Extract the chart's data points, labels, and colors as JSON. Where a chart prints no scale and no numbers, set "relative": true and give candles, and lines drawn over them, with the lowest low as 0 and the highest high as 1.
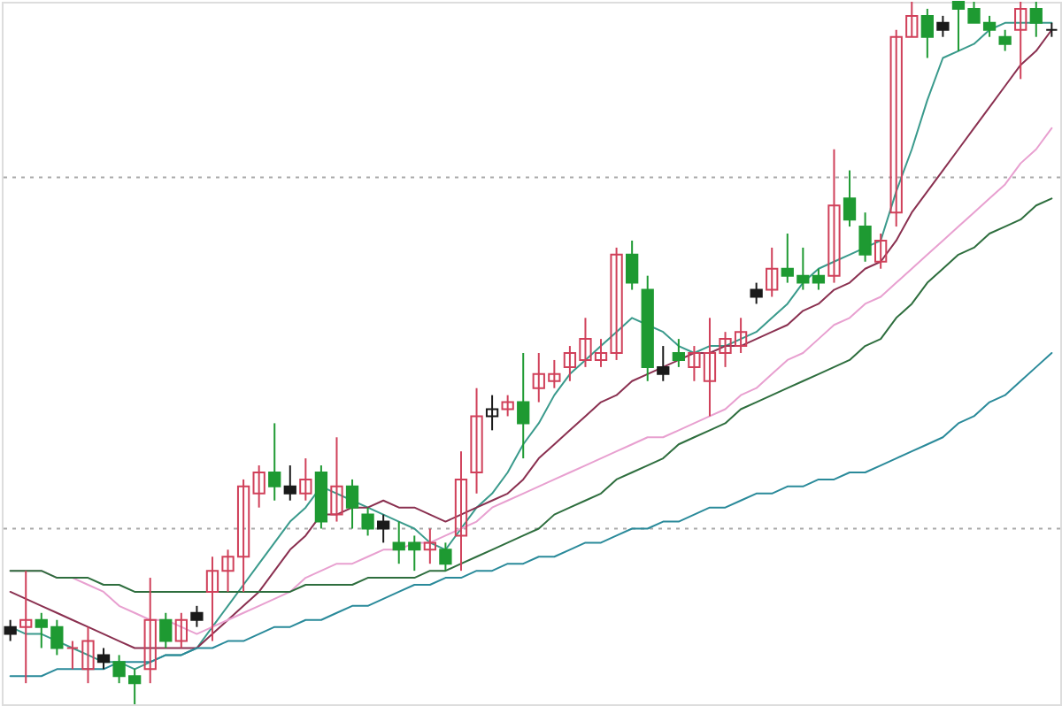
{
  "chart_data": {
    "type": "candlestick",
    "relative": true,
    "categories": [
      null,
      null,
      null,
      null,
      null,
      null,
      null,
      null,
      null,
      null,
      null,
      null,
      null,
      null,
      null,
      null,
      null,
      null,
      null,
      null,
      null,
      null,
      null,
      null,
      null,
      null,
      null,
      null,
      null,
      null,
      null,
      null,
      null,
      null,
      null,
      null,
      null,
      null,
      null,
      null,
      null,
      null,
      null,
      null,
      null,
      null,
      null,
      null,
      null,
      null,
      null,
      null,
      null,
      null,
      null,
      null,
      null,
      null,
      null,
      null,
      null,
      null,
      null,
      null,
      null,
      null,
      null,
      null
    ],
    "ohlc": [
      [
        0.11,
        0.12,
        0.09,
        0.1
      ],
      [
        0.11,
        0.19,
        0.03,
        0.12
      ],
      [
        0.12,
        0.13,
        0.08,
        0.11
      ],
      [
        0.11,
        0.12,
        0.07,
        0.08
      ],
      [
        0.08,
        0.09,
        0.05,
        0.08
      ],
      [
        0.05,
        0.11,
        0.03,
        0.09
      ],
      [
        0.07,
        0.08,
        0.05,
        0.06
      ],
      [
        0.06,
        0.07,
        0.03,
        0.04
      ],
      [
        0.04,
        0.05,
        0,
        0.03
      ],
      [
        0.05,
        0.18,
        0.03,
        0.12
      ],
      [
        0.12,
        0.13,
        0.08,
        0.09
      ],
      [
        0.09,
        0.13,
        0.08,
        0.12
      ],
      [
        0.13,
        0.14,
        0.11,
        0.12
      ],
      [
        0.16,
        0.21,
        0.09,
        0.19
      ],
      [
        0.19,
        0.22,
        0.16,
        0.21
      ],
      [
        0.21,
        0.32,
        0.16,
        0.31
      ],
      [
        0.3,
        0.34,
        0.28,
        0.33
      ],
      [
        0.33,
        0.4,
        0.29,
        0.31
      ],
      [
        0.31,
        0.34,
        0.29,
        0.3
      ],
      [
        0.3,
        0.35,
        0.29,
        0.32
      ],
      [
        0.33,
        0.34,
        0.25,
        0.26
      ],
      [
        0.27,
        0.38,
        0.26,
        0.31
      ],
      [
        0.31,
        0.32,
        0.25,
        0.28
      ],
      [
        0.27,
        0.28,
        0.24,
        0.25
      ],
      [
        0.26,
        0.27,
        0.23,
        0.25
      ],
      [
        0.23,
        0.26,
        0.2,
        0.22
      ],
      [
        0.23,
        0.24,
        0.19,
        0.22
      ],
      [
        0.22,
        0.25,
        0.2,
        0.23
      ],
      [
        0.22,
        0.23,
        0.19,
        0.2
      ],
      [
        0.24,
        0.36,
        0.19,
        0.32
      ],
      [
        0.33,
        0.45,
        0.3,
        0.41
      ],
      [
        0.41,
        0.44,
        0.39,
        0.42
      ],
      [
        0.42,
        0.44,
        0.41,
        0.43
      ],
      [
        0.43,
        0.5,
        0.35,
        0.4
      ],
      [
        0.45,
        0.5,
        0.43,
        0.47
      ],
      [
        0.46,
        0.49,
        0.45,
        0.47
      ],
      [
        0.48,
        0.51,
        0.46,
        0.5
      ],
      [
        0.49,
        0.55,
        0.48,
        0.52
      ],
      [
        0.49,
        0.52,
        0.48,
        0.5
      ],
      [
        0.5,
        0.65,
        0.49,
        0.64
      ],
      [
        0.64,
        0.66,
        0.59,
        0.6
      ],
      [
        0.59,
        0.61,
        0.46,
        0.48
      ],
      [
        0.48,
        0.51,
        0.46,
        0.47
      ],
      [
        0.5,
        0.52,
        0.48,
        0.49
      ],
      [
        0.48,
        0.51,
        0.46,
        0.5
      ],
      [
        0.46,
        0.55,
        0.41,
        0.5
      ],
      [
        0.5,
        0.53,
        0.48,
        0.52
      ],
      [
        0.51,
        0.55,
        0.5,
        0.53
      ],
      [
        0.59,
        0.6,
        0.57,
        0.58
      ],
      [
        0.59,
        0.65,
        0.58,
        0.62
      ],
      [
        0.62,
        0.67,
        0.6,
        0.61
      ],
      [
        0.61,
        0.65,
        0.59,
        0.6
      ],
      [
        0.61,
        0.62,
        0.59,
        0.6
      ],
      [
        0.61,
        0.79,
        0.6,
        0.71
      ],
      [
        0.72,
        0.76,
        0.68,
        0.69
      ],
      [
        0.68,
        0.7,
        0.63,
        0.64
      ],
      [
        0.63,
        0.67,
        0.62,
        0.66
      ],
      [
        0.7,
        0.96,
        0.68,
        0.95
      ],
      [
        0.95,
        1,
        0.95,
        0.98
      ],
      [
        0.98,
        0.99,
        0.92,
        0.95
      ],
      [
        0.97,
        0.98,
        0.95,
        0.96
      ],
      [
        1,
        1,
        0.93,
        0.99
      ],
      [
        0.99,
        1,
        0.97,
        0.97
      ],
      [
        0.97,
        0.98,
        0.95,
        0.96
      ],
      [
        0.95,
        0.96,
        0.93,
        0.94
      ],
      [
        0.96,
        1,
        0.89,
        0.99
      ],
      [
        0.99,
        1,
        0.95,
        0.97
      ],
      [
        0.96,
        0.97,
        0.95,
        0.96
      ]
    ],
    "colors": [
      "#1a1a1a",
      "#d0405a",
      "#1e9a32",
      "#1e9a32",
      "#d0405a",
      "#d0405a",
      "#1a1a1a",
      "#1e9a32",
      "#1e9a32",
      "#d0405a",
      "#1e9a32",
      "#d0405a",
      "#1a1a1a",
      "#d0405a",
      "#d0405a",
      "#d0405a",
      "#d0405a",
      "#1e9a32",
      "#1a1a1a",
      "#d0405a",
      "#1e9a32",
      "#d0405a",
      "#1e9a32",
      "#1e9a32",
      "#1a1a1a",
      "#1e9a32",
      "#1e9a32",
      "#d0405a",
      "#1e9a32",
      "#d0405a",
      "#d0405a",
      "#1a1a1a",
      "#d0405a",
      "#1e9a32",
      "#d0405a",
      "#d0405a",
      "#d0405a",
      "#d0405a",
      "#d0405a",
      "#d0405a",
      "#1e9a32",
      "#1e9a32",
      "#1a1a1a",
      "#1e9a32",
      "#d0405a",
      "#d0405a",
      "#d0405a",
      "#d0405a",
      "#1a1a1a",
      "#d0405a",
      "#1e9a32",
      "#1e9a32",
      "#1e9a32",
      "#d0405a",
      "#1e9a32",
      "#1e9a32",
      "#d0405a",
      "#d0405a",
      "#d0405a",
      "#1e9a32",
      "#1a1a1a",
      "#1e9a32",
      "#1e9a32",
      "#1e9a32",
      "#1e9a32",
      "#d0405a",
      "#1e9a32",
      "#1a1a1a"
    ],
    "series": [
      {
        "type": "line",
        "color": "#3a9a8c",
        "values": [
          0.11,
          0.1,
          0.1,
          0.09,
          0.08,
          0.07,
          0.06,
          0.06,
          0.05,
          0.06,
          0.07,
          0.07,
          0.08,
          0.11,
          0.14,
          0.17,
          0.2,
          0.23,
          0.26,
          0.28,
          0.31,
          0.3,
          0.29,
          0.28,
          0.27,
          0.26,
          0.25,
          0.23,
          0.22,
          0.25,
          0.28,
          0.3,
          0.33,
          0.37,
          0.4,
          0.44,
          0.47,
          0.49,
          0.51,
          0.53,
          0.55,
          0.54,
          0.53,
          0.51,
          0.5,
          0.51,
          0.51,
          0.52,
          0.53,
          0.55,
          0.57,
          0.6,
          0.62,
          0.63,
          0.64,
          0.65,
          0.66,
          0.73,
          0.79,
          0.86,
          0.92,
          0.93,
          0.94,
          0.96,
          0.97,
          0.97,
          0.97,
          0.97
        ]
      },
      {
        "type": "line",
        "color": "#8a3050",
        "values": [
          0.16,
          0.15,
          0.14,
          0.13,
          0.12,
          0.11,
          0.1,
          0.09,
          0.08,
          0.08,
          0.08,
          0.08,
          0.08,
          0.1,
          0.12,
          0.14,
          0.16,
          0.19,
          0.22,
          0.24,
          0.27,
          0.27,
          0.28,
          0.28,
          0.29,
          0.28,
          0.28,
          0.27,
          0.26,
          0.27,
          0.28,
          0.29,
          0.3,
          0.32,
          0.35,
          0.37,
          0.39,
          0.41,
          0.43,
          0.44,
          0.46,
          0.47,
          0.48,
          0.49,
          0.5,
          0.5,
          0.51,
          0.51,
          0.52,
          0.53,
          0.54,
          0.56,
          0.57,
          0.59,
          0.6,
          0.62,
          0.63,
          0.66,
          0.7,
          0.73,
          0.76,
          0.79,
          0.82,
          0.85,
          0.88,
          0.91,
          0.93,
          0.96
        ]
      },
      {
        "type": "line",
        "color": "#e8a0d0",
        "values": [
          0.19,
          0.19,
          0.19,
          0.18,
          0.18,
          0.17,
          0.16,
          0.14,
          0.13,
          0.12,
          0.12,
          0.11,
          0.1,
          0.11,
          0.12,
          0.13,
          0.14,
          0.15,
          0.16,
          0.18,
          0.19,
          0.2,
          0.2,
          0.21,
          0.22,
          0.22,
          0.23,
          0.23,
          0.24,
          0.25,
          0.26,
          0.28,
          0.29,
          0.3,
          0.31,
          0.32,
          0.33,
          0.34,
          0.35,
          0.36,
          0.37,
          0.38,
          0.38,
          0.39,
          0.4,
          0.41,
          0.42,
          0.44,
          0.45,
          0.47,
          0.49,
          0.5,
          0.52,
          0.54,
          0.55,
          0.57,
          0.58,
          0.6,
          0.62,
          0.64,
          0.66,
          0.68,
          0.7,
          0.72,
          0.74,
          0.77,
          0.79,
          0.82
        ]
      },
      {
        "type": "line",
        "color": "#2e6e3e",
        "values": [
          0.19,
          0.19,
          0.19,
          0.18,
          0.18,
          0.18,
          0.17,
          0.17,
          0.16,
          0.16,
          0.16,
          0.16,
          0.16,
          0.16,
          0.16,
          0.16,
          0.16,
          0.16,
          0.16,
          0.17,
          0.17,
          0.17,
          0.17,
          0.18,
          0.18,
          0.18,
          0.18,
          0.19,
          0.19,
          0.2,
          0.21,
          0.22,
          0.23,
          0.24,
          0.25,
          0.27,
          0.28,
          0.29,
          0.3,
          0.32,
          0.33,
          0.34,
          0.35,
          0.37,
          0.38,
          0.39,
          0.4,
          0.42,
          0.43,
          0.44,
          0.45,
          0.46,
          0.47,
          0.48,
          0.49,
          0.51,
          0.52,
          0.55,
          0.57,
          0.6,
          0.62,
          0.64,
          0.65,
          0.67,
          0.68,
          0.69,
          0.71,
          0.72
        ]
      },
      {
        "type": "line",
        "color": "#2a8a9a",
        "values": [
          0.04,
          0.04,
          0.04,
          0.05,
          0.05,
          0.05,
          0.05,
          0.06,
          0.06,
          0.06,
          0.07,
          0.07,
          0.08,
          0.08,
          0.09,
          0.09,
          0.1,
          0.11,
          0.11,
          0.12,
          0.12,
          0.13,
          0.14,
          0.14,
          0.15,
          0.16,
          0.17,
          0.17,
          0.18,
          0.18,
          0.19,
          0.19,
          0.2,
          0.2,
          0.21,
          0.21,
          0.22,
          0.23,
          0.23,
          0.24,
          0.25,
          0.25,
          0.26,
          0.26,
          0.27,
          0.28,
          0.28,
          0.29,
          0.3,
          0.3,
          0.31,
          0.31,
          0.32,
          0.32,
          0.33,
          0.33,
          0.34,
          0.35,
          0.36,
          0.37,
          0.38,
          0.4,
          0.41,
          0.43,
          0.44,
          0.46,
          0.48,
          0.5
        ]
      }
    ],
    "ref_lines": [
      {
        "axis": "y",
        "value": 0.75,
        "color": "#aaaaaa",
        "line_style": "dotted"
      },
      {
        "axis": "y",
        "value": 0.25,
        "color": "#aaaaaa",
        "line_style": "dotted"
      }
    ]
  }
}
